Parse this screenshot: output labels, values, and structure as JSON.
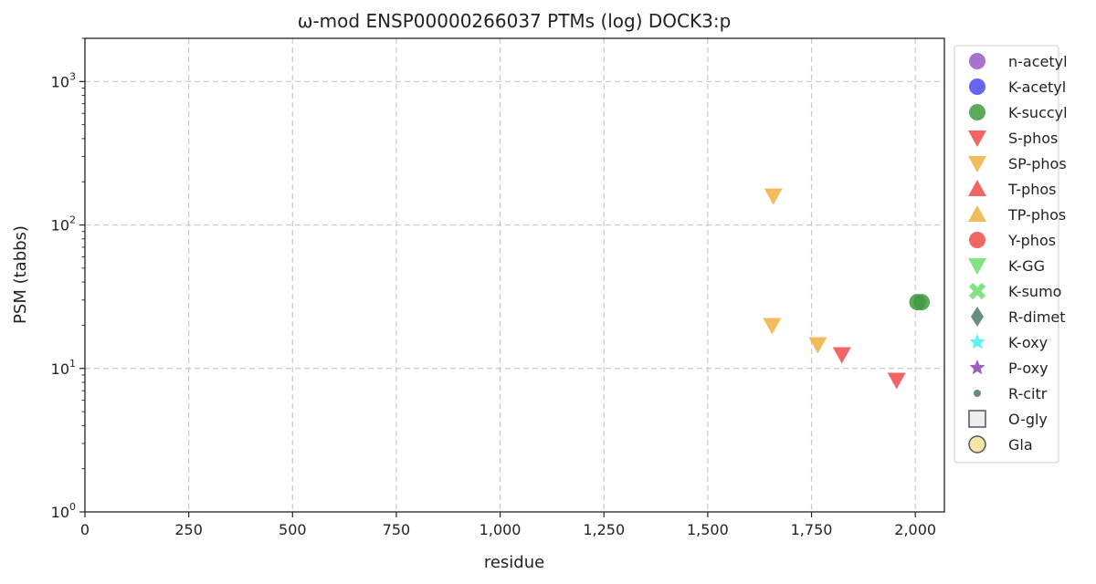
{
  "chart_data": {
    "type": "scatter",
    "title": "ω-mod ENSP00000266037 PTMs (log) DOCK3:p",
    "xlabel": "residue",
    "ylabel": "PSM (tabbs)",
    "xlim": [
      0,
      2070
    ],
    "ylim": [
      1,
      2000
    ],
    "y_scale": "log",
    "x_ticks": [
      0,
      250,
      500,
      750,
      1000,
      1250,
      1500,
      1750,
      2000
    ],
    "x_tick_labels": [
      "0",
      "250",
      "500",
      "750",
      "1,000",
      "1,250",
      "1,500",
      "1,750",
      "2,000"
    ],
    "y_ticks": [
      1,
      10,
      100,
      1000
    ],
    "y_tick_labels": [
      {
        "base": "10",
        "exp": "0"
      },
      {
        "base": "10",
        "exp": "1"
      },
      {
        "base": "10",
        "exp": "2"
      },
      {
        "base": "10",
        "exp": "3"
      }
    ],
    "grid": true,
    "legend_position": "outside-right",
    "series": [
      {
        "name": "n-acetyl",
        "marker": "circle",
        "color": "#9b59c6",
        "points": []
      },
      {
        "name": "K-acetyl",
        "marker": "circle",
        "color": "#4a4af0",
        "points": []
      },
      {
        "name": "K-succyl",
        "marker": "circle",
        "color": "#3f9a3f",
        "points": [
          {
            "x": 2005,
            "y": 29
          },
          {
            "x": 2015,
            "y": 29
          }
        ]
      },
      {
        "name": "S-phos",
        "marker": "triangle-down",
        "color": "#f04a4a",
        "points": [
          {
            "x": 1823,
            "y": 12.5
          },
          {
            "x": 1955,
            "y": 8.3
          }
        ]
      },
      {
        "name": "SP-phos",
        "marker": "triangle-down",
        "color": "#f0b040",
        "points": [
          {
            "x": 1658,
            "y": 160
          },
          {
            "x": 1655,
            "y": 20
          },
          {
            "x": 1765,
            "y": 14.7
          }
        ]
      },
      {
        "name": "T-phos",
        "marker": "triangle-up",
        "color": "#f04a4a",
        "points": []
      },
      {
        "name": "TP-phos",
        "marker": "triangle-up",
        "color": "#f0b040",
        "points": []
      },
      {
        "name": "Y-phos",
        "marker": "circle",
        "color": "#f04a4a",
        "points": []
      },
      {
        "name": "K-GG",
        "marker": "triangle-down",
        "color": "#6fdc6f",
        "points": []
      },
      {
        "name": "K-sumo",
        "marker": "x",
        "color": "#6fdc6f",
        "points": []
      },
      {
        "name": "R-dimet",
        "marker": "diamond",
        "color": "#4a7a6a",
        "points": []
      },
      {
        "name": "K-oxy",
        "marker": "star",
        "color": "#40f0f0",
        "points": []
      },
      {
        "name": "P-oxy",
        "marker": "star",
        "color": "#8e44ad",
        "points": []
      },
      {
        "name": "R-citr",
        "marker": "small-circle",
        "color": "#4a7a6a",
        "points": []
      },
      {
        "name": "O-gly",
        "marker": "square-open",
        "color": "#555555",
        "points": []
      },
      {
        "name": "Gla",
        "marker": "circle-open",
        "color": "#f5e6a8",
        "points": []
      }
    ]
  }
}
